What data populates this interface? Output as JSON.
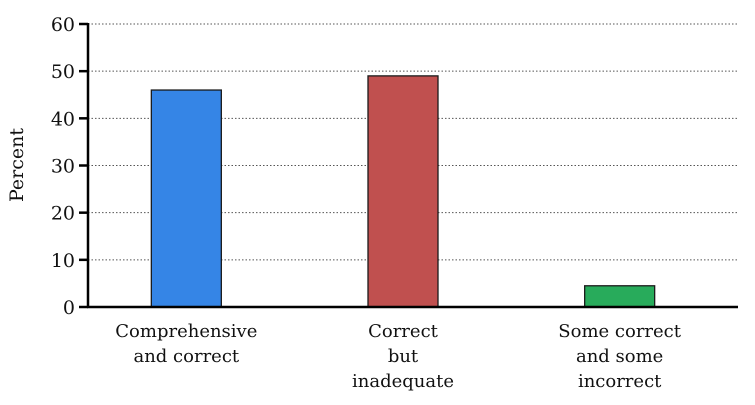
{
  "chart_data": {
    "type": "bar",
    "categories": [
      [
        "Comprehensive",
        "and correct"
      ],
      [
        "Correct",
        "but",
        "inadequate"
      ],
      [
        "Some correct",
        "and some",
        "incorrect"
      ]
    ],
    "values": [
      46,
      49,
      4.5
    ],
    "colors": [
      "#3585e6",
      "#c0504f",
      "#28ab5b"
    ],
    "title": "",
    "xlabel": "",
    "ylabel": "Percent",
    "ylim": [
      0,
      60
    ],
    "yticks": [
      0,
      10,
      20,
      30,
      40,
      50,
      60
    ],
    "grid": "horizontal dotted"
  }
}
